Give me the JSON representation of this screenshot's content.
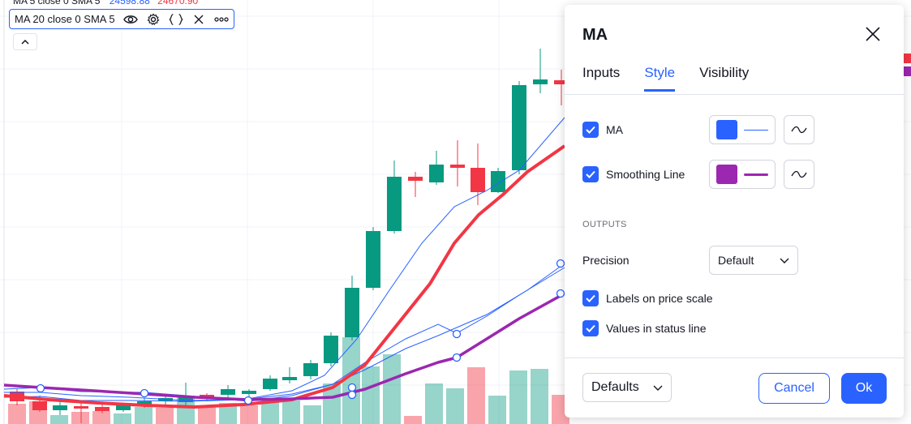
{
  "top_legend": {
    "text": "MA 5 close 0 SMA 5",
    "value1": "24598.88",
    "value2": "24670.90"
  },
  "study_legend": {
    "text": "MA 20 close 0 SMA 5",
    "icons": [
      "eye-icon",
      "gear-icon",
      "source-code-icon",
      "close-icon",
      "more-icon"
    ]
  },
  "dialog": {
    "title": "MA",
    "tabs": [
      {
        "label": "Inputs",
        "active": false
      },
      {
        "label": "Style",
        "active": true
      },
      {
        "label": "Visibility",
        "active": false
      }
    ],
    "ma": {
      "label": "MA",
      "checked": true,
      "color": "#2962ff"
    },
    "smoothing": {
      "label": "Smoothing Line",
      "checked": true,
      "color": "#9c27b0"
    },
    "outputs_label": "OUTPUTS",
    "precision": {
      "label": "Precision",
      "value": "Default"
    },
    "labels_on_price_scale": {
      "label": "Labels on price scale",
      "checked": true
    },
    "values_in_status_line": {
      "label": "Values in status line",
      "checked": true
    },
    "defaults_label": "Defaults",
    "cancel_label": "Cancel",
    "ok_label": "Ok"
  },
  "colors": {
    "accent": "#2962ff",
    "up_candle": "#089981",
    "down_candle": "#f23645",
    "smoothing_line": "#9c27b0",
    "ma_line": "#2962ff",
    "thick_ma": "#f23645"
  }
}
